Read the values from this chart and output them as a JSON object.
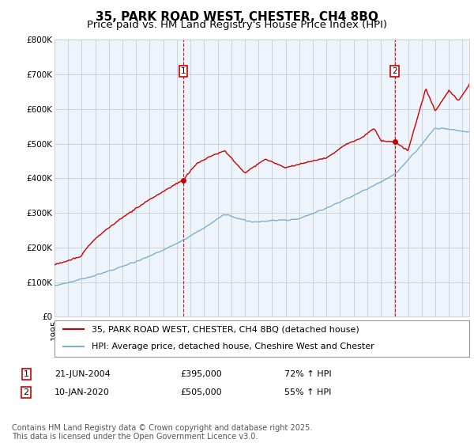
{
  "title": "35, PARK ROAD WEST, CHESTER, CH4 8BQ",
  "subtitle": "Price paid vs. HM Land Registry's House Price Index (HPI)",
  "ylabel_ticks": [
    "£0",
    "£100K",
    "£200K",
    "£300K",
    "£400K",
    "£500K",
    "£600K",
    "£700K",
    "£800K"
  ],
  "ytick_vals": [
    0,
    100000,
    200000,
    300000,
    400000,
    500000,
    600000,
    700000,
    800000
  ],
  "ylim": [
    0,
    800000
  ],
  "xlim_start": 1995.0,
  "xlim_end": 2025.5,
  "red_line_color": "#cc0000",
  "blue_line_color": "#7bafd4",
  "blue_fill_color": "#ddeeff",
  "sale1_x": 2004.47,
  "sale1_y": 395000,
  "sale1_label": "1",
  "sale2_x": 2020.03,
  "sale2_y": 505000,
  "sale2_label": "2",
  "vline_color": "#cc0000",
  "grid_color": "#cccccc",
  "bg_color": "#ffffff",
  "plot_bg_color": "#eef4fb",
  "legend_entry1": "35, PARK ROAD WEST, CHESTER, CH4 8BQ (detached house)",
  "legend_entry2": "HPI: Average price, detached house, Cheshire West and Chester",
  "ann1_date": "21-JUN-2004",
  "ann1_price": "£395,000",
  "ann1_hpi": "72% ↑ HPI",
  "ann2_date": "10-JAN-2020",
  "ann2_price": "£505,000",
  "ann2_hpi": "55% ↑ HPI",
  "footnote": "Contains HM Land Registry data © Crown copyright and database right 2025.\nThis data is licensed under the Open Government Licence v3.0.",
  "title_fontsize": 11,
  "subtitle_fontsize": 9.5,
  "tick_fontsize": 7.5,
  "legend_fontsize": 8,
  "ann_fontsize": 8,
  "footnote_fontsize": 7
}
